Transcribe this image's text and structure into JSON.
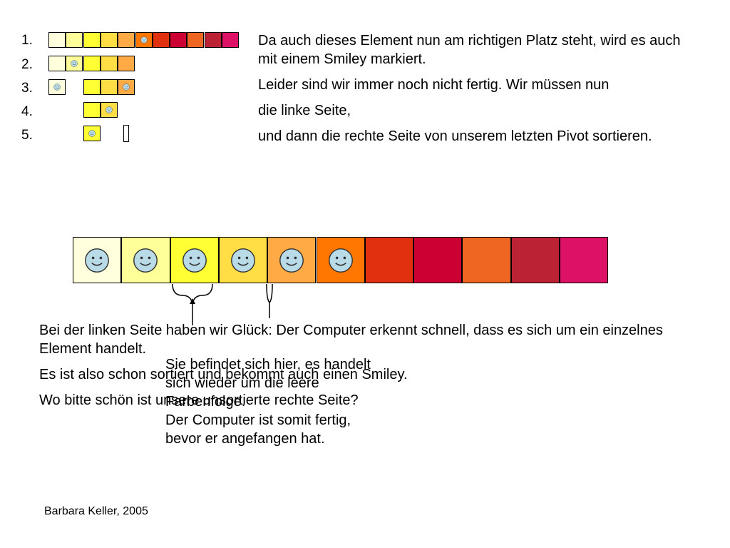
{
  "colors": {
    "palette": [
      "#ffffdd",
      "#ffff99",
      "#ffff33",
      "#ffdd44",
      "#ffaa44",
      "#ff7700",
      "#e03010",
      "#cc0033",
      "#ee6622",
      "#bb2233",
      "#dd1166"
    ],
    "smiley_face": "#b9dbe8"
  },
  "rows": [
    {
      "label": "1.",
      "cells": [
        {
          "c": 0
        },
        {
          "c": 1
        },
        {
          "c": 2
        },
        {
          "c": 3
        },
        {
          "c": 4
        },
        {
          "c": 5,
          "smiley": true
        },
        {
          "c": 6
        },
        {
          "c": 7
        },
        {
          "c": 8
        },
        {
          "c": 9
        },
        {
          "c": 10
        }
      ]
    },
    {
      "label": "2.",
      "cells": [
        {
          "c": 0
        },
        {
          "c": 1,
          "smiley": true
        },
        {
          "c": 2
        },
        {
          "c": 3
        },
        {
          "c": 4
        }
      ]
    },
    {
      "label": "3.",
      "cells": [
        {
          "c": 0,
          "smiley": true
        },
        null,
        {
          "c": 2
        },
        {
          "c": 3
        },
        {
          "c": 4,
          "smiley": true
        }
      ]
    },
    {
      "label": "4.",
      "cells": [
        null,
        null,
        {
          "c": 2
        },
        {
          "c": 3,
          "smiley": true
        }
      ]
    },
    {
      "label": "5.",
      "cells": [
        null,
        null,
        {
          "c": 2,
          "smiley": true
        },
        null,
        {
          "empty": true
        }
      ]
    }
  ],
  "right_text": [
    "Da auch dieses Element nun am richtigen Platz steht, wird es auch mit einem Smiley markiert.",
    "Leider sind wir immer noch nicht fertig. Wir müssen nun",
    "die linke Seite,",
    "und dann die rechte Seite von unserem letzten Pivot sortieren."
  ],
  "big_row": [
    {
      "c": 0,
      "smiley": true
    },
    {
      "c": 1,
      "smiley": true
    },
    {
      "c": 2,
      "smiley": true
    },
    {
      "c": 3,
      "smiley": true
    },
    {
      "c": 4,
      "smiley": true
    },
    {
      "c": 5,
      "smiley": true
    },
    {
      "c": 6
    },
    {
      "c": 7
    },
    {
      "c": 8
    },
    {
      "c": 9
    },
    {
      "c": 10
    }
  ],
  "bottom_text": [
    "Bei der linken Seite haben wir Glück: Der Computer erkennt schnell, dass es sich um ein einzelnes Element handelt.",
    "Es ist also schon sortiert und bekommt auch einen Smiley.",
    "Wo bitte schön ist unsere unsortierte rechte Seite?"
  ],
  "overlay_note": "Sie befindet sich hier, es handelt sich wieder um die leere Farbenfolge.\nDer Computer ist somit fertig, bevor er angefangen hat.",
  "footer": "Barbara Keller, 2005"
}
